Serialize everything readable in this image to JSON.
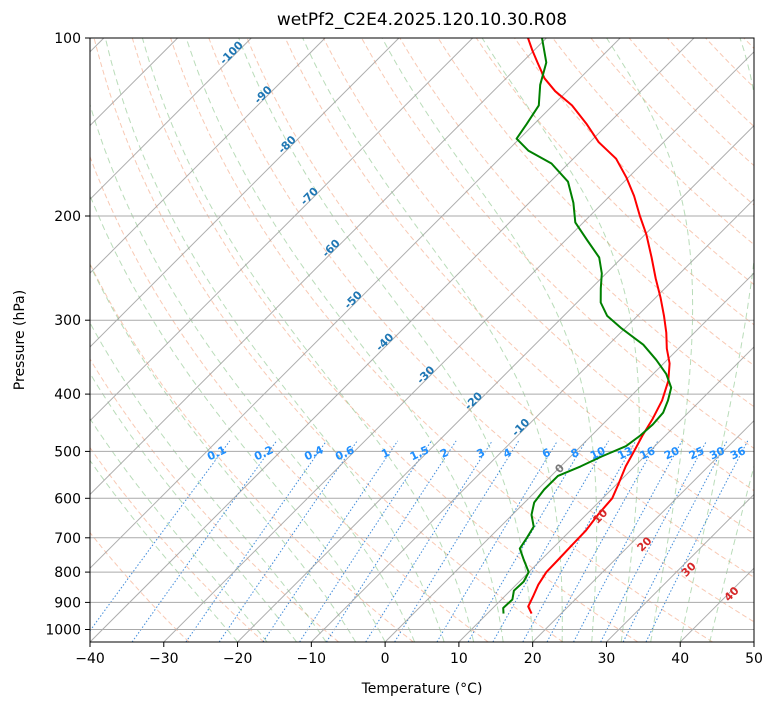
{
  "title": "wetPf2_C2E4.2025.120.10.30.R08",
  "chart_data": {
    "type": "line",
    "title": "wetPf2_C2E4.2025.120.10.30.R08",
    "xlabel": "Temperature (°C)",
    "ylabel": "Pressure (hPa)",
    "xlim": [
      -40,
      50
    ],
    "ylim": [
      1050,
      100
    ],
    "y_scale": "log",
    "grid": true,
    "x_ticks": [
      -40,
      -30,
      -20,
      -10,
      0,
      10,
      20,
      30,
      40,
      50
    ],
    "y_ticks": [
      100,
      200,
      300,
      400,
      500,
      600,
      700,
      800,
      900,
      1000
    ],
    "series": [
      {
        "color": "#ff0000",
        "points": [
          {
            "p": 940,
            "t": 16.0
          },
          {
            "p": 915,
            "t": 14.6
          },
          {
            "p": 880,
            "t": 13.9
          },
          {
            "p": 840,
            "t": 13.0
          },
          {
            "p": 800,
            "t": 12.4
          },
          {
            "p": 760,
            "t": 12.3
          },
          {
            "p": 720,
            "t": 12.2
          },
          {
            "p": 680,
            "t": 12.1
          },
          {
            "p": 640,
            "t": 11.6
          },
          {
            "p": 600,
            "t": 11.3
          },
          {
            "p": 570,
            "t": 10.3
          },
          {
            "p": 530,
            "t": 8.8
          },
          {
            "p": 500,
            "t": 7.9
          },
          {
            "p": 470,
            "t": 6.9
          },
          {
            "p": 440,
            "t": 6.0
          },
          {
            "p": 410,
            "t": 4.8
          },
          {
            "p": 380,
            "t": 3.0
          },
          {
            "p": 355,
            "t": 0.8
          },
          {
            "p": 335,
            "t": -1.6
          },
          {
            "p": 315,
            "t": -3.8
          },
          {
            "p": 295,
            "t": -6.4
          },
          {
            "p": 275,
            "t": -9.3
          },
          {
            "p": 255,
            "t": -12.6
          },
          {
            "p": 235,
            "t": -16.0
          },
          {
            "p": 215,
            "t": -19.8
          },
          {
            "p": 200,
            "t": -23.2
          },
          {
            "p": 185,
            "t": -26.7
          },
          {
            "p": 172,
            "t": -30.3
          },
          {
            "p": 160,
            "t": -34.2
          },
          {
            "p": 150,
            "t": -38.8
          },
          {
            "p": 140,
            "t": -42.8
          },
          {
            "p": 130,
            "t": -47.4
          },
          {
            "p": 123,
            "t": -51.6
          },
          {
            "p": 117,
            "t": -54.8
          },
          {
            "p": 110,
            "t": -57.9
          },
          {
            "p": 105,
            "t": -60.2
          },
          {
            "p": 100,
            "t": -62.5
          }
        ]
      },
      {
        "color": "#008000",
        "points": [
          {
            "p": 940,
            "t": 12.2
          },
          {
            "p": 920,
            "t": 11.4
          },
          {
            "p": 890,
            "t": 11.5
          },
          {
            "p": 860,
            "t": 10.5
          },
          {
            "p": 830,
            "t": 10.6
          },
          {
            "p": 800,
            "t": 10.0
          },
          {
            "p": 760,
            "t": 7.5
          },
          {
            "p": 730,
            "t": 5.6
          },
          {
            "p": 700,
            "t": 5.1
          },
          {
            "p": 670,
            "t": 4.5
          },
          {
            "p": 640,
            "t": 2.6
          },
          {
            "p": 610,
            "t": 1.3
          },
          {
            "p": 580,
            "t": 0.9
          },
          {
            "p": 550,
            "t": 0.9
          },
          {
            "p": 530,
            "t": 2.7
          },
          {
            "p": 510,
            "t": 4.2
          },
          {
            "p": 490,
            "t": 6.1
          },
          {
            "p": 470,
            "t": 6.6
          },
          {
            "p": 450,
            "t": 6.8
          },
          {
            "p": 430,
            "t": 6.6
          },
          {
            "p": 410,
            "t": 5.6
          },
          {
            "p": 390,
            "t": 4.3
          },
          {
            "p": 370,
            "t": 1.8
          },
          {
            "p": 350,
            "t": -1.5
          },
          {
            "p": 330,
            "t": -5.3
          },
          {
            "p": 310,
            "t": -10.4
          },
          {
            "p": 295,
            "t": -14.1
          },
          {
            "p": 280,
            "t": -16.8
          },
          {
            "p": 265,
            "t": -18.7
          },
          {
            "p": 250,
            "t": -20.6
          },
          {
            "p": 235,
            "t": -23.1
          },
          {
            "p": 220,
            "t": -27.0
          },
          {
            "p": 205,
            "t": -31.1
          },
          {
            "p": 190,
            "t": -34.0
          },
          {
            "p": 175,
            "t": -37.6
          },
          {
            "p": 163,
            "t": -42.3
          },
          {
            "p": 155,
            "t": -47.2
          },
          {
            "p": 148,
            "t": -50.4
          },
          {
            "p": 140,
            "t": -51.0
          },
          {
            "p": 130,
            "t": -51.9
          },
          {
            "p": 120,
            "t": -54.5
          },
          {
            "p": 110,
            "t": -56.7
          },
          {
            "p": 100,
            "t": -60.6
          }
        ]
      }
    ],
    "isotherm_labels": [
      {
        "text": "-100",
        "t": -100,
        "p": 107
      },
      {
        "text": "-90",
        "t": -90,
        "p": 126
      },
      {
        "text": "-80",
        "t": -80,
        "p": 153
      },
      {
        "text": "-70",
        "t": -70,
        "p": 187
      },
      {
        "text": "-60",
        "t": -60,
        "p": 229
      },
      {
        "text": "-50",
        "t": -50,
        "p": 280
      },
      {
        "text": "-40",
        "t": -40,
        "p": 330
      },
      {
        "text": "-30",
        "t": -30,
        "p": 375
      },
      {
        "text": "-20",
        "t": -20,
        "p": 415
      },
      {
        "text": "-10",
        "t": -10,
        "p": 460
      }
    ],
    "moist_adiabat_labels": [
      {
        "text": "0",
        "t": 24,
        "p": 540
      },
      {
        "text": "10",
        "t": 29.5,
        "p": 650
      },
      {
        "text": "20",
        "t": 35.5,
        "p": 725
      },
      {
        "text": "30",
        "t": 41.5,
        "p": 800
      },
      {
        "text": "40",
        "t": 47.3,
        "p": 880
      }
    ],
    "mixing_ratio_labels": [
      "0.1",
      "0.2",
      "0.4",
      "0.6",
      "1",
      "1.5",
      "2",
      "3",
      "4",
      "6",
      "8",
      "10",
      "13",
      "16",
      "20",
      "25",
      "30",
      "36"
    ]
  }
}
